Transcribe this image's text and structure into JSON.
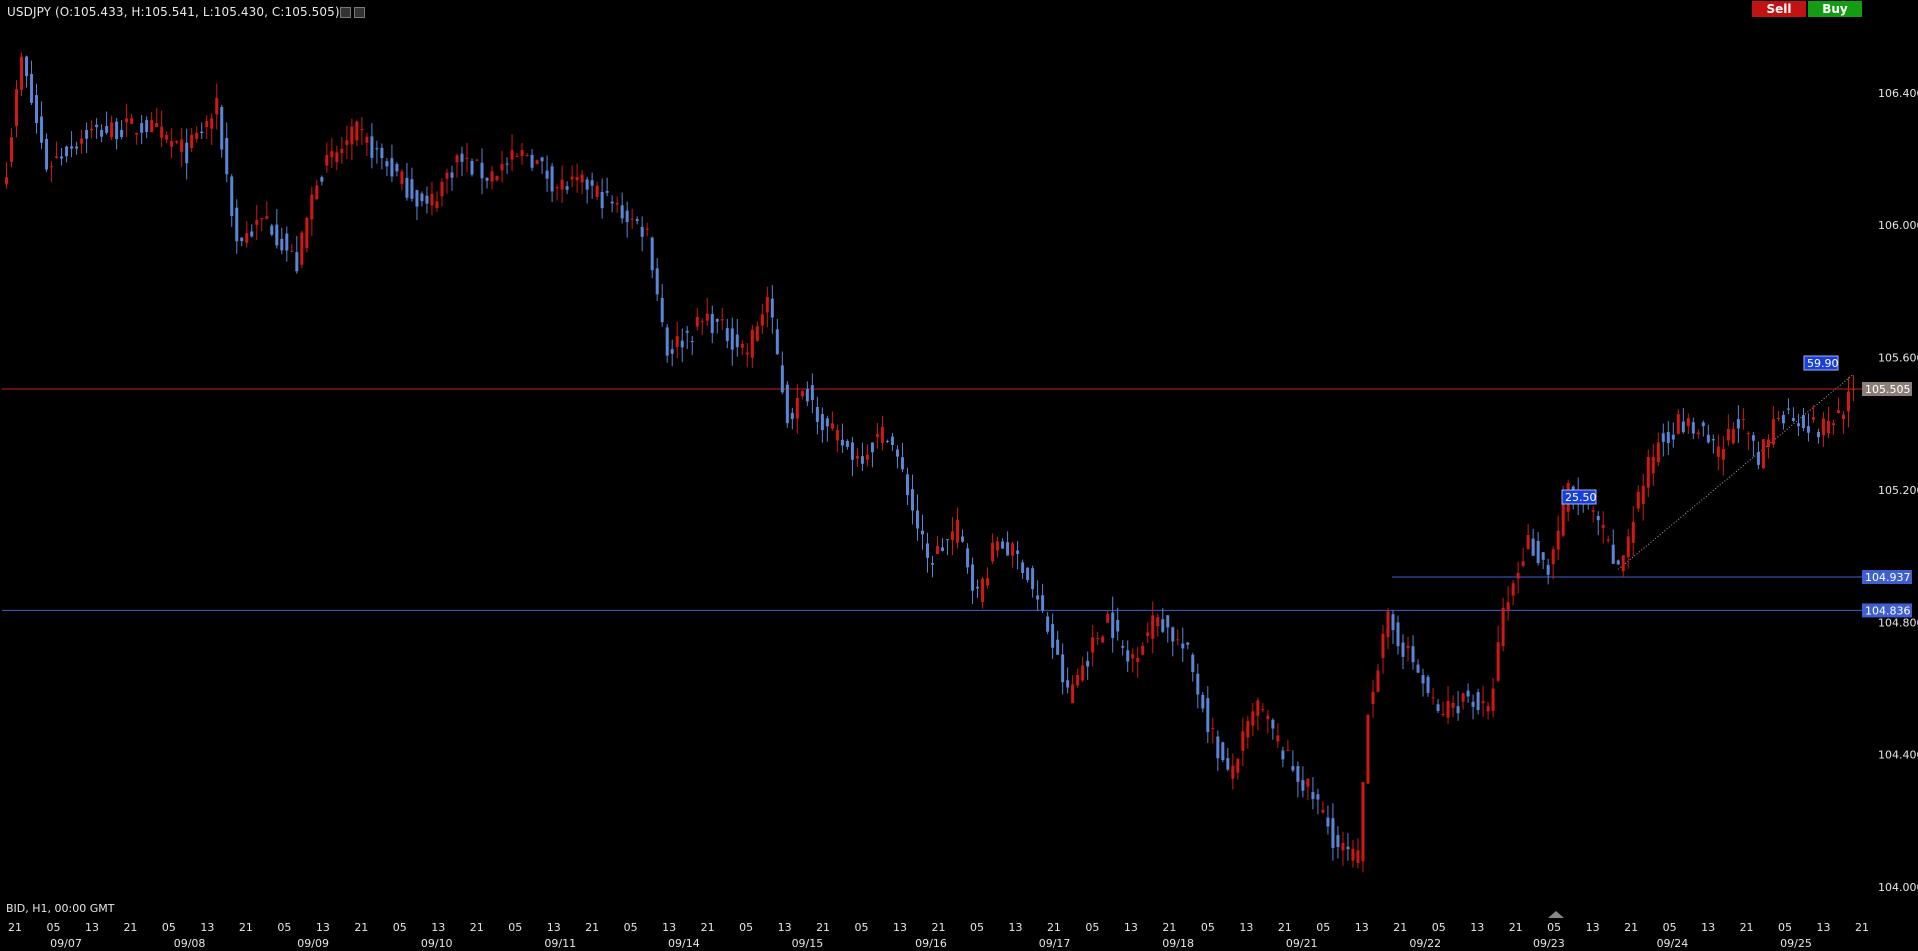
{
  "header": {
    "symbol_line": "USDJPY (O:105.433, H:105.541, L:105.430, C:105.505)"
  },
  "buttons": {
    "sell": "Sell",
    "buy": "Buy"
  },
  "footer": {
    "label": "BID, H1, 00:00 GMT"
  },
  "colors": {
    "background": "#000000",
    "up": "#d01818",
    "down": "#5b86d6",
    "price_line": "#c62020",
    "level_line": "#3f5fd0"
  },
  "chart_data": {
    "type": "candlestick",
    "y_ticks": [
      106.4,
      106.0,
      105.6,
      105.2,
      104.8,
      104.4,
      104.0
    ],
    "ylim": [
      103.97,
      106.59
    ],
    "x_hour_labels": [
      "21",
      "05",
      "13",
      "21",
      "05",
      "13",
      "21",
      "05",
      "13",
      "21",
      "05",
      "13",
      "21",
      "05",
      "13",
      "21",
      "05",
      "13",
      "21",
      "05",
      "13",
      "21",
      "05",
      "13",
      "21",
      "05",
      "13",
      "21",
      "05",
      "13",
      "21",
      "05",
      "13",
      "21",
      "05",
      "13",
      "21",
      "05",
      "13",
      "21",
      "05",
      "13",
      "21",
      "05",
      "13",
      "21",
      "05",
      "13",
      "21"
    ],
    "x_date_labels": [
      "09/07",
      "09/08",
      "09/09",
      "09/10",
      "09/11",
      "09/14",
      "09/15",
      "09/16",
      "09/17",
      "09/18",
      "09/21",
      "09/22",
      "09/23",
      "09/24",
      "09/25"
    ],
    "price_tags": [
      {
        "label": "105.505",
        "value": 105.505,
        "kind": "price"
      },
      {
        "label": "104.937",
        "value": 104.937,
        "kind": "level"
      },
      {
        "label": "104.836",
        "value": 104.836,
        "kind": "level"
      }
    ],
    "annotations": [
      "25.50",
      "59.90"
    ],
    "anchors": [
      [
        0,
        106.18
      ],
      [
        3,
        106.5
      ],
      [
        8,
        106.18
      ],
      [
        16,
        106.28
      ],
      [
        28,
        106.3
      ],
      [
        36,
        106.22
      ],
      [
        42,
        106.35
      ],
      [
        46,
        105.95
      ],
      [
        52,
        106.02
      ],
      [
        58,
        105.88
      ],
      [
        62,
        106.15
      ],
      [
        70,
        106.28
      ],
      [
        78,
        106.15
      ],
      [
        84,
        106.05
      ],
      [
        90,
        106.2
      ],
      [
        96,
        106.15
      ],
      [
        104,
        106.22
      ],
      [
        110,
        106.12
      ],
      [
        116,
        106.12
      ],
      [
        122,
        106.05
      ],
      [
        128,
        105.98
      ],
      [
        132,
        105.62
      ],
      [
        140,
        105.72
      ],
      [
        148,
        105.62
      ],
      [
        152,
        105.78
      ],
      [
        156,
        105.42
      ],
      [
        160,
        105.5
      ],
      [
        164,
        105.38
      ],
      [
        170,
        105.3
      ],
      [
        176,
        105.38
      ],
      [
        180,
        105.2
      ],
      [
        184,
        104.98
      ],
      [
        190,
        105.08
      ],
      [
        194,
        104.88
      ],
      [
        198,
        105.05
      ],
      [
        203,
        104.98
      ],
      [
        208,
        104.78
      ],
      [
        212,
        104.58
      ],
      [
        220,
        104.82
      ],
      [
        224,
        104.68
      ],
      [
        230,
        104.82
      ],
      [
        236,
        104.7
      ],
      [
        240,
        104.5
      ],
      [
        244,
        104.33
      ],
      [
        250,
        104.55
      ],
      [
        256,
        104.38
      ],
      [
        262,
        104.25
      ],
      [
        266,
        104.12
      ],
      [
        270,
        104.08
      ],
      [
        272,
        104.55
      ],
      [
        276,
        104.8
      ],
      [
        281,
        104.68
      ],
      [
        286,
        104.52
      ],
      [
        292,
        104.58
      ],
      [
        296,
        104.52
      ],
      [
        299,
        104.82
      ],
      [
        304,
        105.05
      ],
      [
        308,
        104.96
      ],
      [
        312,
        105.2
      ],
      [
        318,
        105.1
      ],
      [
        322,
        104.95
      ],
      [
        326,
        105.18
      ],
      [
        330,
        105.35
      ],
      [
        334,
        105.4
      ],
      [
        338,
        105.38
      ],
      [
        342,
        105.3
      ],
      [
        346,
        105.42
      ],
      [
        350,
        105.28
      ],
      [
        354,
        105.44
      ],
      [
        358,
        105.42
      ],
      [
        362,
        105.38
      ],
      [
        366,
        105.43
      ],
      [
        369,
        105.505
      ]
    ]
  }
}
